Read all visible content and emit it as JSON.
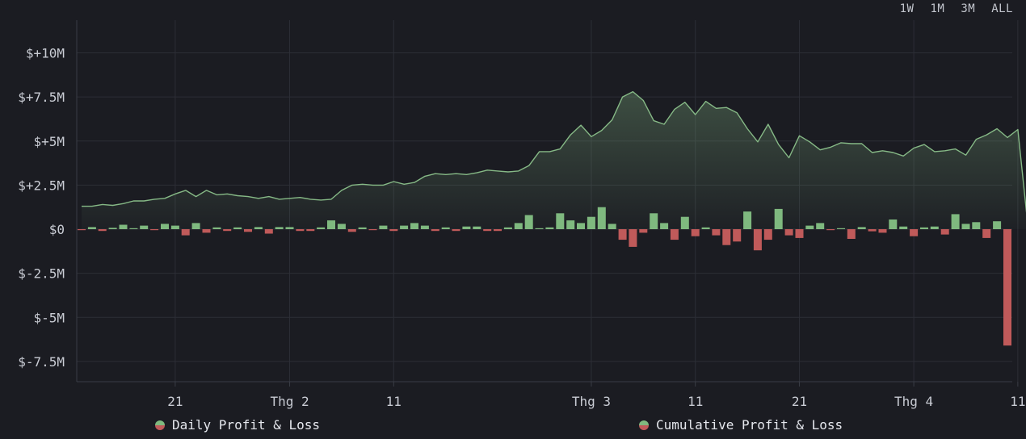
{
  "range_buttons": [
    "1W",
    "1M",
    "3M",
    "ALL"
  ],
  "legend": {
    "daily": "Daily Profit & Loss",
    "cumulative": "Cumulative Profit & Loss"
  },
  "colors": {
    "background": "#1b1c22",
    "grid": "#2c2e36",
    "cumulative_line": "#86b986",
    "positive_bar": "#7fb97f",
    "negative_bar": "#c05a5a",
    "text": "#c9ccd4"
  },
  "chart_data": {
    "type": "bar",
    "title": "",
    "xlabel": "",
    "ylabel": "",
    "ylim": [
      -8.5,
      11
    ],
    "y_ticks": [
      {
        "value": 10,
        "label": "$+10M"
      },
      {
        "value": 7.5,
        "label": "$+7.5M"
      },
      {
        "value": 5,
        "label": "$+5M"
      },
      {
        "value": 2.5,
        "label": "$+2.5M"
      },
      {
        "value": 0,
        "label": "$0"
      },
      {
        "value": -2.5,
        "label": "$-2.5M"
      },
      {
        "value": -5,
        "label": "$-5M"
      },
      {
        "value": -7.5,
        "label": "$-7.5M"
      }
    ],
    "x_ticks": [
      {
        "index": 9,
        "label": "21"
      },
      {
        "index": 20,
        "label": "Thg 2"
      },
      {
        "index": 30,
        "label": "11"
      },
      {
        "index": 49,
        "label": "Thg 3"
      },
      {
        "index": 59,
        "label": "11"
      },
      {
        "index": 69,
        "label": "21"
      },
      {
        "index": 80,
        "label": "Thg 4"
      },
      {
        "index": 90,
        "label": "11"
      }
    ],
    "series": [
      {
        "name": "Daily Profit & Loss",
        "type": "bar",
        "values": [
          -0.05,
          0.12,
          -0.1,
          0.08,
          0.25,
          0.05,
          0.2,
          -0.05,
          0.3,
          0.2,
          -0.35,
          0.35,
          -0.2,
          0.1,
          -0.1,
          0.1,
          -0.15,
          0.12,
          -0.25,
          0.12,
          0.12,
          -0.1,
          -0.1,
          0.1,
          0.5,
          0.3,
          -0.15,
          0.1,
          -0.05,
          0.2,
          -0.1,
          0.2,
          0.35,
          0.2,
          -0.1,
          0.1,
          -0.1,
          0.15,
          0.15,
          -0.1,
          -0.1,
          0.1,
          0.35,
          0.8,
          0.05,
          0.1,
          0.9,
          0.5,
          0.35,
          0.7,
          1.25,
          0.3,
          -0.6,
          -1.0,
          -0.2,
          0.9,
          0.35,
          -0.6,
          0.7,
          -0.4,
          0.1,
          -0.35,
          -0.9,
          -0.7,
          1.0,
          -1.2,
          -0.6,
          1.15,
          -0.35,
          -0.5,
          0.2,
          0.35,
          -0.05,
          0.05,
          -0.55,
          0.12,
          -0.12,
          -0.2,
          0.55,
          0.15,
          -0.4,
          0.1,
          0.15,
          -0.3,
          0.85,
          0.3,
          0.4,
          -0.5,
          0.45,
          -6.6
        ]
      },
      {
        "name": "Cumulative Profit & Loss",
        "type": "line",
        "values": [
          1.3,
          1.3,
          1.4,
          1.35,
          1.45,
          1.6,
          1.6,
          1.7,
          1.75,
          2.0,
          2.2,
          1.85,
          2.2,
          1.95,
          2.0,
          1.9,
          1.85,
          1.75,
          1.85,
          1.7,
          1.75,
          1.8,
          1.7,
          1.65,
          1.7,
          2.2,
          2.5,
          2.55,
          2.5,
          2.5,
          2.7,
          2.55,
          2.65,
          3.0,
          3.15,
          3.1,
          3.15,
          3.1,
          3.2,
          3.35,
          3.3,
          3.25,
          3.3,
          3.6,
          4.4,
          4.4,
          4.55,
          5.35,
          5.9,
          5.25,
          5.6,
          6.2,
          7.5,
          7.8,
          7.3,
          6.15,
          5.95,
          6.8,
          7.2,
          6.5,
          7.25,
          6.85,
          6.9,
          6.6,
          5.7,
          4.95,
          5.95,
          4.8,
          4.05,
          5.3,
          4.95,
          4.5,
          4.65,
          4.9,
          4.85,
          4.85,
          4.35,
          4.45,
          4.35,
          4.15,
          4.6,
          4.8,
          4.4,
          4.45,
          4.55,
          4.2,
          5.1,
          5.35,
          5.7,
          5.2,
          5.65,
          0.0
        ]
      }
    ],
    "grid": true,
    "legend_position": "bottom"
  }
}
